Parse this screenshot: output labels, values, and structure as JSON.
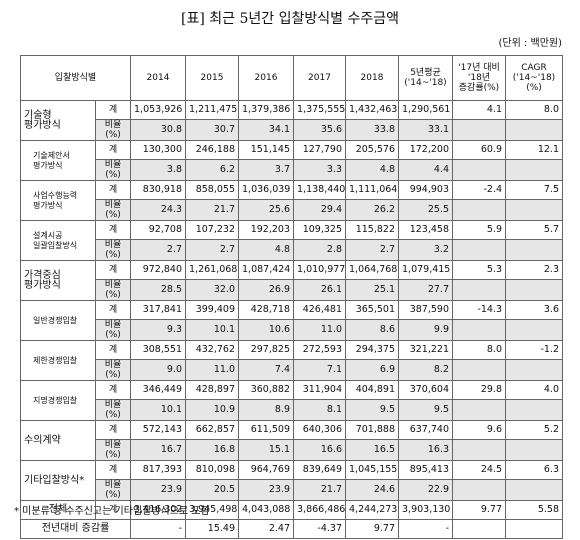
{
  "header": {
    "title": "[표] 최근 5년간 입찰방식별 수주금액",
    "unit": "(단위 : 백만원)"
  },
  "table": {
    "columns": [
      "입찰방식별",
      "2014",
      "2015",
      "2016",
      "2017",
      "2018",
      "5년평균\n('14~'18)",
      "'17년 대비\n'18년\n증감률(%)",
      "CAGR\n('14~'18)\n(%)"
    ],
    "groups": [
      {
        "label": "기술형\n평가방식",
        "sub": false,
        "total_label": "계",
        "total": [
          "1,053,926",
          "1,211,475",
          "1,379,386",
          "1,375,555",
          "1,432,463",
          "1,290,561",
          "4.1",
          "8.0"
        ],
        "ratio_label": "비율(%)",
        "ratio": [
          "30.8",
          "30.7",
          "34.1",
          "35.6",
          "33.8",
          "33.1"
        ]
      },
      {
        "label": "기술제안서\n평가방식",
        "sub": true,
        "total_label": "계",
        "total": [
          "130,300",
          "246,188",
          "151,145",
          "127,790",
          "205,576",
          "172,200",
          "60.9",
          "12.1"
        ],
        "ratio_label": "비율(%)",
        "ratio": [
          "3.8",
          "6.2",
          "3.7",
          "3.3",
          "4.8",
          "4.4"
        ]
      },
      {
        "label": "사업수행능력\n평가방식",
        "sub": true,
        "total_label": "계",
        "total": [
          "830,918",
          "858,055",
          "1,036,039",
          "1,138,440",
          "1,111,064",
          "994,903",
          "-2.4",
          "7.5"
        ],
        "ratio_label": "비율(%)",
        "ratio": [
          "24.3",
          "21.7",
          "25.6",
          "29.4",
          "26.2",
          "25.5"
        ]
      },
      {
        "label": "설계시공\n일괄입찰방식",
        "sub": true,
        "total_label": "계",
        "total": [
          "92,708",
          "107,232",
          "192,203",
          "109,325",
          "115,822",
          "123,458",
          "5.9",
          "5.7"
        ],
        "ratio_label": "비율(%)",
        "ratio": [
          "2.7",
          "2.7",
          "4.8",
          "2.8",
          "2.7",
          "3.2"
        ]
      },
      {
        "label": "가격중심\n평가방식",
        "sub": false,
        "total_label": "계",
        "total": [
          "972,840",
          "1,261,068",
          "1,087,424",
          "1,010,977",
          "1,064,768",
          "1,079,415",
          "5.3",
          "2.3"
        ],
        "ratio_label": "비율(%)",
        "ratio": [
          "28.5",
          "32.0",
          "26.9",
          "26.1",
          "25.1",
          "27.7"
        ]
      },
      {
        "label": "일반경쟁입찰",
        "sub": true,
        "total_label": "계",
        "total": [
          "317,841",
          "399,409",
          "428,718",
          "426,481",
          "365,501",
          "387,590",
          "-14.3",
          "3.6"
        ],
        "ratio_label": "비율(%)",
        "ratio": [
          "9.3",
          "10.1",
          "10.6",
          "11.0",
          "8.6",
          "9.9"
        ]
      },
      {
        "label": "제한경쟁입찰",
        "sub": true,
        "total_label": "계",
        "total": [
          "308,551",
          "432,762",
          "297,825",
          "272,593",
          "294,375",
          "321,221",
          "8.0",
          "-1.2"
        ],
        "ratio_label": "비율(%)",
        "ratio": [
          "9.0",
          "11.0",
          "7.4",
          "7.1",
          "6.9",
          "8.2"
        ]
      },
      {
        "label": "지명경쟁입찰",
        "sub": true,
        "total_label": "계",
        "total": [
          "346,449",
          "428,897",
          "360,882",
          "311,904",
          "404,891",
          "370,604",
          "29.8",
          "4.0"
        ],
        "ratio_label": "비율(%)",
        "ratio": [
          "10.1",
          "10.9",
          "8.9",
          "8.1",
          "9.5",
          "9.5"
        ]
      },
      {
        "label": "수의계약",
        "sub": false,
        "total_label": "계",
        "total": [
          "572,143",
          "662,857",
          "611,509",
          "640,306",
          "701,888",
          "637,740",
          "9.6",
          "5.2"
        ],
        "ratio_label": "비율(%)",
        "ratio": [
          "16.7",
          "16.8",
          "15.1",
          "16.6",
          "16.5",
          "16.3"
        ]
      },
      {
        "label": "기타입찰방식*",
        "sub": false,
        "total_label": "계",
        "total": [
          "817,393",
          "810,098",
          "964,769",
          "839,649",
          "1,045,155",
          "895,413",
          "24.5",
          "6.3"
        ],
        "ratio_label": "비율(%)",
        "ratio": [
          "23.9",
          "20.5",
          "23.9",
          "21.7",
          "24.6",
          "22.9"
        ]
      }
    ],
    "overall": {
      "label": "전체",
      "kind": "계",
      "values": [
        "3,416,302",
        "3,945,498",
        "4,043,088",
        "3,866,486",
        "4,244,273",
        "3,903,130",
        "9.77",
        "5.58"
      ]
    },
    "change": {
      "label": "전년대비 증감률",
      "values": [
        "-",
        "15.49",
        "2.47",
        "-4.37",
        "9.77",
        "-"
      ]
    }
  },
  "footnote": "* 미분류 등 수주신고는 기타입찰방식으로 포함"
}
